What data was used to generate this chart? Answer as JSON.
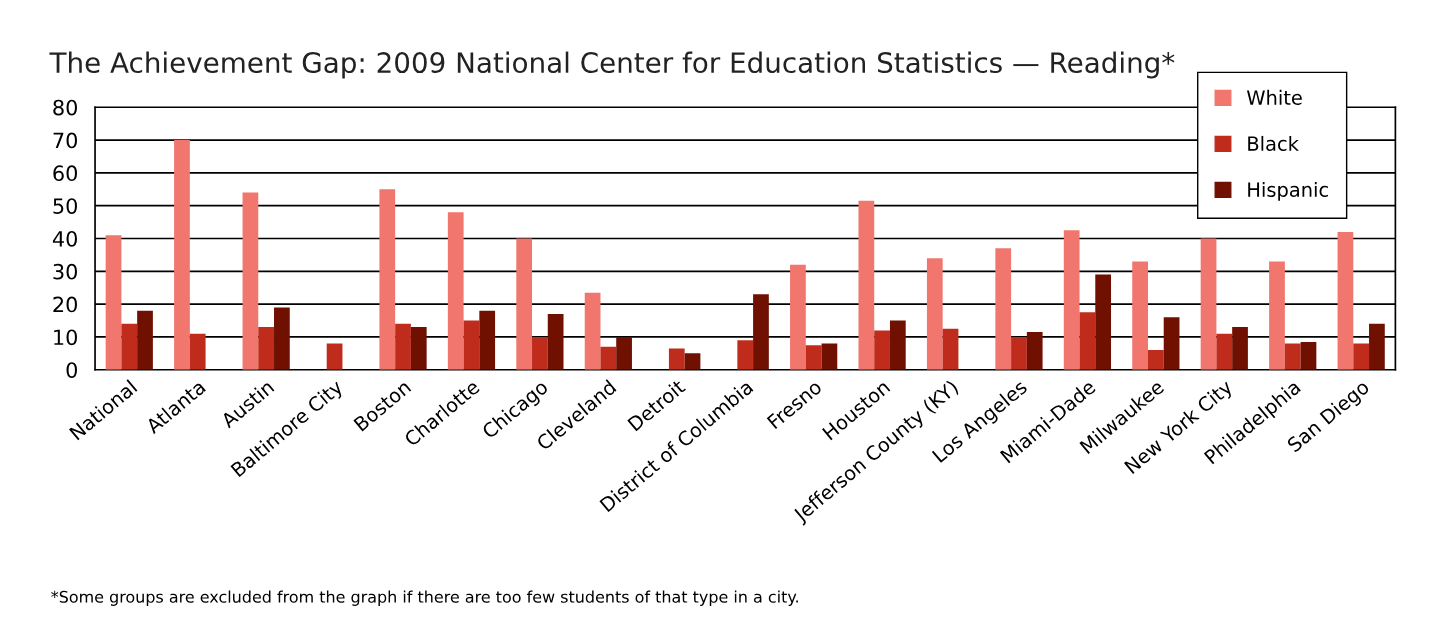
{
  "chart_data": {
    "type": "bar",
    "title": "The Achievement Gap: 2009 National Center for Education Statistics — Reading*",
    "categories": [
      "National",
      "Atlanta",
      "Austin",
      "Baltimore City",
      "Boston",
      "Charlotte",
      "Chicago",
      "Cleveland",
      "Detroit",
      "District of Columbia",
      "Fresno",
      "Houston",
      "Jefferson County (KY)",
      "Los Angeles",
      "Miami-Dade",
      "Milwaukee",
      "New York City",
      "Philadelphia",
      "San Diego"
    ],
    "series": [
      {
        "name": "White",
        "color": "#f0766e",
        "values": [
          41,
          70,
          54,
          null,
          55,
          48,
          40,
          23.5,
          null,
          null,
          32,
          51.5,
          34,
          37,
          42.5,
          33,
          40,
          33,
          42
        ]
      },
      {
        "name": "Black",
        "color": "#c02c1c",
        "values": [
          14,
          11,
          13,
          8,
          14,
          15,
          10,
          7,
          6.5,
          9,
          7.5,
          12,
          12.5,
          10,
          17.5,
          6,
          11,
          8,
          8
        ]
      },
      {
        "name": "Hispanic",
        "color": "#701000",
        "values": [
          18,
          null,
          19,
          null,
          13,
          18,
          17,
          10,
          5,
          23,
          8,
          15,
          null,
          11.5,
          29,
          16,
          13,
          8.5,
          14
        ]
      }
    ],
    "ylim": [
      0,
      80
    ],
    "yticks": [
      0,
      10,
      20,
      30,
      40,
      50,
      60,
      70,
      80
    ],
    "grid": "y",
    "legend": "top right",
    "annotations": [
      "*Some groups are excluded from the graph if there are too few students of that type in a city."
    ]
  }
}
